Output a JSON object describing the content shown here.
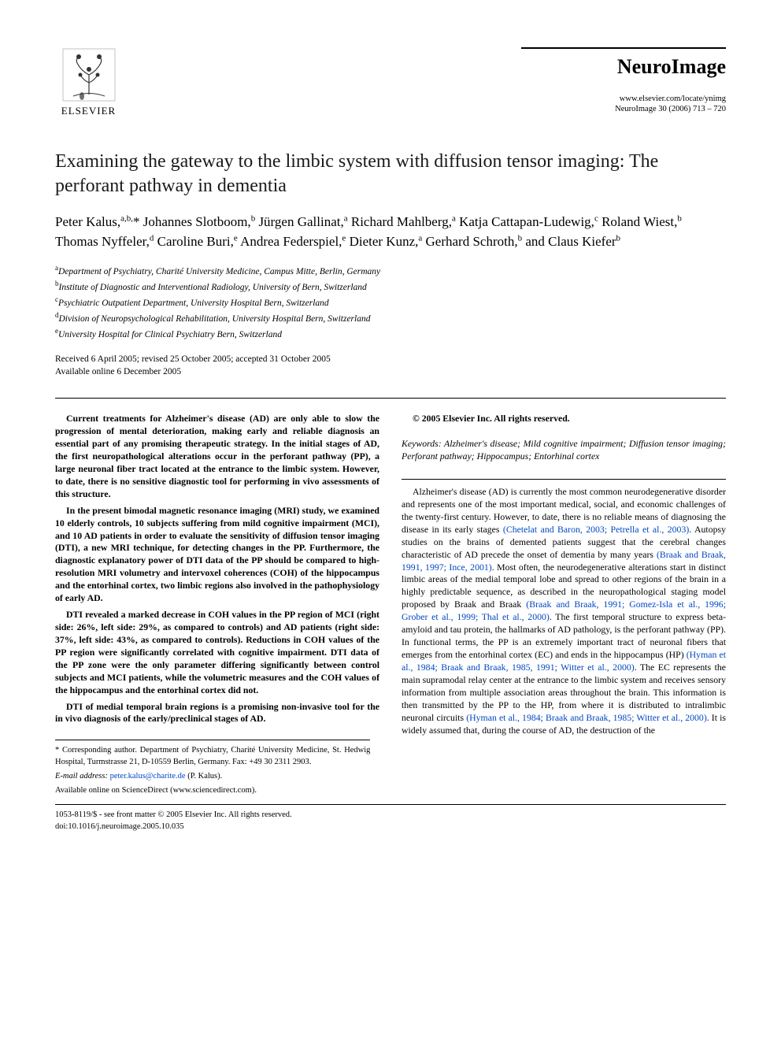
{
  "publisher": {
    "name": "ELSEVIER"
  },
  "journal": {
    "name": "NeuroImage",
    "url": "www.elsevier.com/locate/ynimg",
    "citation": "NeuroImage 30 (2006) 713 – 720"
  },
  "title": "Examining the gateway to the limbic system with diffusion tensor imaging: The perforant pathway in dementia",
  "authors_html": "Peter Kalus,<sup>a,b,</sup>* Johannes Slotboom,<sup>b</sup> Jürgen Gallinat,<sup>a</sup> Richard Mahlberg,<sup>a</sup> Katja Cattapan-Ludewig,<sup>c</sup> Roland Wiest,<sup>b</sup> Thomas Nyffeler,<sup>d</sup> Caroline Buri,<sup>e</sup> Andrea Federspiel,<sup>e</sup> Dieter Kunz,<sup>a</sup> Gerhard Schroth,<sup>b</sup> and Claus Kiefer<sup>b</sup>",
  "affiliations": [
    {
      "sup": "a",
      "text": "Department of Psychiatry, Charité University Medicine, Campus Mitte, Berlin, Germany"
    },
    {
      "sup": "b",
      "text": "Institute of Diagnostic and Interventional Radiology, University of Bern, Switzerland"
    },
    {
      "sup": "c",
      "text": "Psychiatric Outpatient Department, University Hospital Bern, Switzerland"
    },
    {
      "sup": "d",
      "text": "Division of Neuropsychological Rehabilitation, University Hospital Bern, Switzerland"
    },
    {
      "sup": "e",
      "text": "University Hospital for Clinical Psychiatry Bern, Switzerland"
    }
  ],
  "dates": {
    "received": "Received 6 April 2005; revised 25 October 2005; accepted 31 October 2005",
    "online": "Available online 6 December 2005"
  },
  "abstract": {
    "p1": "Current treatments for Alzheimer's disease (AD) are only able to slow the progression of mental deterioration, making early and reliable diagnosis an essential part of any promising therapeutic strategy. In the initial stages of AD, the first neuropathological alterations occur in the perforant pathway (PP), a large neuronal fiber tract located at the entrance to the limbic system. However, to date, there is no sensitive diagnostic tool for performing in vivo assessments of this structure.",
    "p2": "In the present bimodal magnetic resonance imaging (MRI) study, we examined 10 elderly controls, 10 subjects suffering from mild cognitive impairment (MCI), and 10 AD patients in order to evaluate the sensitivity of diffusion tensor imaging (DTI), a new MRI technique, for detecting changes in the PP. Furthermore, the diagnostic explanatory power of DTI data of the PP should be compared to high-resolution MRI volumetry and intervoxel coherences (COH) of the hippocampus and the entorhinal cortex, two limbic regions also involved in the pathophysiology of early AD.",
    "p3": "DTI revealed a marked decrease in COH values in the PP region of MCI (right side: 26%, left side: 29%, as compared to controls) and AD patients (right side: 37%, left side: 43%, as compared to controls). Reductions in COH values of the PP region were significantly correlated with cognitive impairment. DTI data of the PP zone were the only parameter differing significantly between control subjects and MCI patients, while the volumetric measures and the COH values of the hippocampus and the entorhinal cortex did not.",
    "p4": "DTI of medial temporal brain regions is a promising non-invasive tool for the in vivo diagnosis of the early/preclinical stages of AD.",
    "copyright": "© 2005 Elsevier Inc. All rights reserved."
  },
  "keywords": {
    "label": "Keywords:",
    "text": " Alzheimer's disease; Mild cognitive impairment; Diffusion tensor imaging; Perforant pathway; Hippocampus; Entorhinal cortex"
  },
  "body": {
    "p1_pre": "Alzheimer's disease (AD) is currently the most common neurodegenerative disorder and represents one of the most important medical, social, and economic challenges of the twenty-first century. However, to date, there is no reliable means of diagnosing the disease in its early stages ",
    "ref1": "(Chetelat and Baron, 2003; Petrella et al., 2003)",
    "p1_mid1": ". Autopsy studies on the brains of demented patients suggest that the cerebral changes characteristic of AD precede the onset of dementia by many years ",
    "ref2": "(Braak and Braak, 1991, 1997; Ince, 2001)",
    "p1_mid2": ". Most often, the neurodegenerative alterations start in distinct limbic areas of the medial temporal lobe and spread to other regions of the brain in a highly predictable sequence, as described in the neuropathological staging model proposed by Braak and Braak ",
    "ref3": "(Braak and Braak, 1991; Gomez-Isla et al., 1996; Grober et al., 1999; Thal et al., 2000)",
    "p1_mid3": ". The first temporal structure to express beta-amyloid and tau protein, the hallmarks of AD pathology, is the perforant pathway (PP). In functional terms, the PP is an extremely important tract of neuronal fibers that emerges from the entorhinal cortex (EC) and ends in the hippocampus (HP) ",
    "ref4": "(Hyman et al., 1984; Braak and Braak, 1985, 1991; Witter et al., 2000)",
    "p1_mid4": ". The EC represents the main supramodal relay center at the entrance to the limbic system and receives sensory information from multiple association areas throughout the brain. This information is then transmitted by the PP to the HP, from where it is distributed to intralimbic neuronal circuits ",
    "ref5": "(Hyman et al., 1984; Braak and Braak, 1985; Witter et al., 2000)",
    "p1_end": ". It is widely assumed that, during the course of AD, the destruction of the"
  },
  "footnotes": {
    "corresponding": "* Corresponding author. Department of Psychiatry, Charité University Medicine, St. Hedwig Hospital, Turmstrasse 21, D-10559 Berlin, Germany. Fax: +49 30 2311 2903.",
    "email_label": "E-mail address:",
    "email": "peter.kalus@charite.de",
    "email_suffix": " (P. Kalus).",
    "sciencedirect": "Available online on ScienceDirect (www.sciencedirect.com)."
  },
  "bottom": {
    "issn": "1053-8119/$ - see front matter © 2005 Elsevier Inc. All rights reserved.",
    "doi": "doi:10.1016/j.neuroimage.2005.10.035"
  },
  "colors": {
    "link": "#0047c2",
    "text": "#000000",
    "background": "#ffffff"
  },
  "fonts": {
    "body_family": "Times New Roman",
    "title_size_pt": 18,
    "author_size_pt": 13,
    "body_size_pt": 9,
    "journal_name_size_pt": 20
  }
}
